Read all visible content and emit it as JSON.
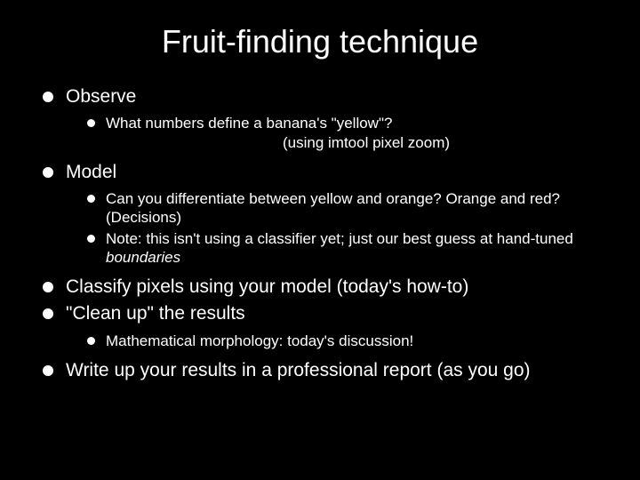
{
  "slide": {
    "title": "Fruit-finding technique",
    "background_color": "#000000",
    "text_color": "#ffffff",
    "title_fontsize": 36,
    "lvl1_fontsize": 21,
    "lvl2_fontsize": 17,
    "bullet1_color": "#ffffff",
    "bullet2_color": "#ffffff"
  },
  "items": {
    "observe": {
      "label": "Observe",
      "sub": {
        "s0a": "What numbers define a banana's \"yellow\"?",
        "s0b": "(using imtool pixel zoom)"
      }
    },
    "model": {
      "label": "Model",
      "sub": {
        "s0": "Can you differentiate between yellow and orange? Orange and red? (Decisions)",
        "s1_pre": "Note: this isn't using a classifier yet; just our best guess at hand-tuned ",
        "s1_em": "boundaries"
      }
    },
    "classify": {
      "label": "Classify pixels using your model (today's how-to)"
    },
    "cleanup": {
      "label": "\"Clean up\" the results",
      "sub": {
        "s0": "Mathematical morphology: today's discussion!"
      }
    },
    "writeup": {
      "label": "Write up your results in a professional report (as you go)"
    }
  }
}
